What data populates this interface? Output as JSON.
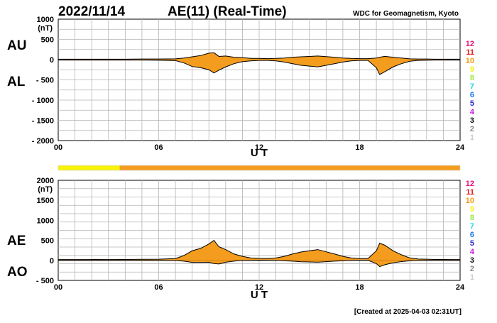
{
  "header": {
    "date": "2022/11/14",
    "title": "AE(11) (Real-Time)",
    "source": "WDC for Geomagnetism, Kyoto"
  },
  "footer": {
    "created": "[Created at 2025-04-03 02:31UT]"
  },
  "legend": {
    "items": [
      {
        "label": "12",
        "color": "#e8127a"
      },
      {
        "label": "11",
        "color": "#e21b1b"
      },
      {
        "label": "10",
        "color": "#f39c12"
      },
      {
        "label": "9",
        "color": "#f1f10e"
      },
      {
        "label": "8",
        "color": "#9be63c"
      },
      {
        "label": "7",
        "color": "#24d6e8"
      },
      {
        "label": "6",
        "color": "#1878e6"
      },
      {
        "label": "5",
        "color": "#2b2bc8"
      },
      {
        "label": "4",
        "color": "#c21bd6"
      },
      {
        "label": "3",
        "color": "#111111"
      },
      {
        "label": "2",
        "color": "#888888"
      },
      {
        "label": "1",
        "color": "#cccccc"
      }
    ]
  },
  "status_bar": {
    "segments": [
      {
        "from": 0,
        "to": 3.67,
        "color": "#f7f20a"
      },
      {
        "from": 3.67,
        "to": 24,
        "color": "#f39c1e"
      }
    ]
  },
  "colors": {
    "fill": "#f39c1e",
    "line": "#000000",
    "grid": "#b4b4b4"
  },
  "chart_data": [
    {
      "type": "area",
      "name": "AU/AL",
      "labels_left": [
        "AU",
        "AL"
      ],
      "unit": "(nT)",
      "xlabel": "U T",
      "xlim": [
        0,
        24
      ],
      "x_ticks": [
        0,
        6,
        12,
        18,
        24
      ],
      "x_tick_labels": [
        "00",
        "06",
        "12",
        "18",
        "24"
      ],
      "ylim": [
        -2000,
        1000
      ],
      "y_ticks": [
        1000,
        500,
        0,
        -500,
        -1000,
        -1500,
        -2000
      ],
      "y_tick_labels": [
        "1000",
        "500",
        "0",
        "- 500",
        "- 1000",
        "- 1500",
        "- 2000"
      ],
      "grid": true,
      "series": [
        {
          "name": "AU",
          "x": [
            0,
            1,
            2,
            3,
            4,
            5,
            6,
            7,
            7.5,
            8,
            8.5,
            9,
            9.3,
            9.6,
            10,
            10.5,
            11,
            11.5,
            12,
            12.5,
            13,
            13.5,
            14,
            14.5,
            15,
            15.5,
            16,
            16.5,
            17,
            17.5,
            18,
            18.5,
            19,
            19.2,
            19.5,
            20,
            20.5,
            21,
            21.5,
            22,
            22.5,
            23,
            23.5,
            24
          ],
          "values": [
            10,
            10,
            12,
            10,
            12,
            15,
            15,
            20,
            40,
            70,
            100,
            160,
            170,
            80,
            90,
            60,
            50,
            30,
            30,
            25,
            30,
            40,
            60,
            70,
            80,
            90,
            75,
            60,
            40,
            30,
            25,
            25,
            40,
            60,
            80,
            60,
            40,
            20,
            15,
            15,
            12,
            12,
            10,
            10
          ]
        },
        {
          "name": "AL",
          "x": [
            0,
            1,
            2,
            3,
            4,
            5,
            6,
            7,
            7.5,
            8,
            8.5,
            9,
            9.3,
            9.6,
            10,
            10.5,
            11,
            11.5,
            12,
            12.5,
            13,
            13.5,
            14,
            14.5,
            15,
            15.5,
            16,
            16.5,
            17,
            17.5,
            18,
            18.5,
            19,
            19.2,
            19.5,
            20,
            20.5,
            21,
            21.5,
            22,
            22.5,
            23,
            23.5,
            24
          ],
          "values": [
            -10,
            -10,
            -10,
            -10,
            -12,
            -12,
            -15,
            -25,
            -80,
            -170,
            -200,
            -250,
            -330,
            -260,
            -180,
            -100,
            -50,
            -30,
            -20,
            -20,
            -30,
            -60,
            -100,
            -140,
            -160,
            -180,
            -140,
            -100,
            -60,
            -30,
            -20,
            -20,
            -200,
            -370,
            -300,
            -180,
            -100,
            -40,
            -20,
            -15,
            -12,
            -12,
            -10,
            -10
          ]
        }
      ]
    },
    {
      "type": "area",
      "name": "AE/AO",
      "labels_left": [
        "AE",
        "AO"
      ],
      "unit": "(nT)",
      "xlabel": "U T",
      "xlim": [
        0,
        24
      ],
      "x_ticks": [
        0,
        6,
        12,
        18,
        24
      ],
      "x_tick_labels": [
        "00",
        "06",
        "12",
        "18",
        "24"
      ],
      "ylim": [
        -500,
        2000
      ],
      "y_ticks": [
        2000,
        1500,
        1000,
        500,
        0,
        -500
      ],
      "y_tick_labels": [
        "2000",
        "1500",
        "1000",
        "500",
        "0",
        "- 500"
      ],
      "grid": true,
      "series": [
        {
          "name": "AE",
          "x": [
            0,
            1,
            2,
            3,
            4,
            5,
            6,
            7,
            7.5,
            8,
            8.5,
            9,
            9.3,
            9.6,
            10,
            10.5,
            11,
            11.5,
            12,
            12.5,
            13,
            13.5,
            14,
            14.5,
            15,
            15.5,
            16,
            16.5,
            17,
            17.5,
            18,
            18.5,
            19,
            19.2,
            19.5,
            20,
            20.5,
            21,
            21.5,
            22,
            22.5,
            23,
            23.5,
            24
          ],
          "values": [
            20,
            20,
            22,
            20,
            24,
            27,
            30,
            45,
            120,
            240,
            300,
            410,
            500,
            340,
            270,
            160,
            100,
            60,
            50,
            45,
            60,
            100,
            160,
            210,
            240,
            270,
            215,
            160,
            100,
            60,
            45,
            45,
            240,
            430,
            380,
            240,
            140,
            60,
            35,
            30,
            24,
            24,
            20,
            20
          ]
        },
        {
          "name": "AO",
          "x": [
            0,
            1,
            2,
            3,
            4,
            5,
            6,
            7,
            7.5,
            8,
            8.5,
            9,
            9.3,
            9.6,
            10,
            10.5,
            11,
            11.5,
            12,
            12.5,
            13,
            13.5,
            14,
            14.5,
            15,
            15.5,
            16,
            16.5,
            17,
            17.5,
            18,
            18.5,
            19,
            19.2,
            19.5,
            20,
            20.5,
            21,
            21.5,
            22,
            22.5,
            23,
            23.5,
            24
          ],
          "values": [
            0,
            0,
            1,
            0,
            0,
            1,
            0,
            -2,
            -20,
            -50,
            -50,
            -45,
            -80,
            -90,
            -45,
            -20,
            0,
            0,
            5,
            2,
            0,
            -10,
            -20,
            -35,
            -40,
            -45,
            -32,
            -20,
            -10,
            0,
            2,
            2,
            -80,
            -155,
            -110,
            -60,
            -30,
            -10,
            -2,
            0,
            0,
            0,
            0,
            0
          ]
        }
      ]
    }
  ]
}
